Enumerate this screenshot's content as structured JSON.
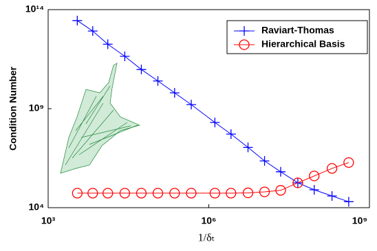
{
  "chart_data": {
    "type": "line",
    "x_label": "1/δₜ",
    "y_label": "Condition Number",
    "x": [
      3500,
      6800,
      13000,
      27000,
      55000,
      112000,
      230000,
      470000,
      1300000,
      2600000,
      5400000,
      11000000,
      22000000,
      46000000,
      93000000,
      200000000,
      410000000
    ],
    "series": [
      {
        "name": "Raviart-Thomas",
        "color": "#0000ff",
        "marker": "plus",
        "values": [
          28000000000000,
          8300000000000,
          1800000000000,
          440000000000,
          95000000000,
          25000000000,
          6300000000,
          1600000000,
          200000000,
          52000000,
          11000000,
          2300000,
          650000,
          180000,
          80000,
          39000,
          20000
        ]
      },
      {
        "name": "Hierarchical Basis",
        "color": "#ff0000",
        "marker": "circle",
        "values": [
          54000,
          54000,
          54000,
          54000,
          54000,
          54000,
          54000,
          54000,
          54000,
          54000,
          56000,
          63000,
          75000,
          180000,
          400000,
          960000,
          1900000
        ]
      }
    ],
    "x_log": true,
    "y_log": true,
    "xlim": [
      1000,
      1000000000
    ],
    "ylim": [
      10000,
      100000000000000
    ],
    "xticks": [
      {
        "value": 1000,
        "label": "10³"
      },
      {
        "value": 1000000,
        "label": "10⁶"
      },
      {
        "value": 1000000000,
        "label": "10⁹"
      }
    ],
    "yticks": [
      {
        "value": 10000,
        "label": "10⁴"
      },
      {
        "value": 1000000000,
        "label": "10⁹"
      },
      {
        "value": 100000000000000,
        "label": "10¹⁴"
      }
    ],
    "legend": "upper right"
  }
}
